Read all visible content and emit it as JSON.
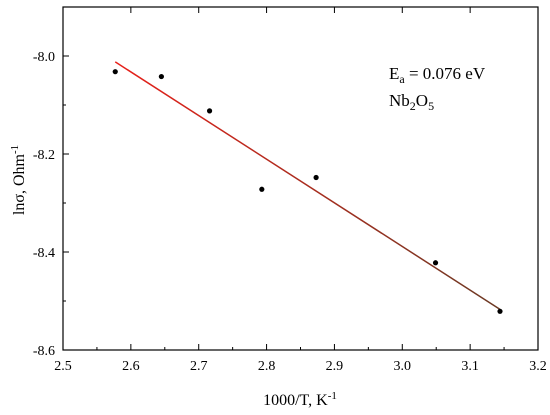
{
  "chart_data": {
    "type": "scatter",
    "title": "",
    "xlabel": "1000/T, K",
    "xlabel_sup": "-1",
    "ylabel": "lnσ, Ohm",
    "ylabel_sup": "-1",
    "xlim": [
      2.5,
      3.2
    ],
    "ylim": [
      -8.6,
      -7.9
    ],
    "x_ticks": [
      "2.5",
      "2.6",
      "2.7",
      "2.8",
      "2.9",
      "3.0",
      "3.1",
      "3.2"
    ],
    "y_ticks": [
      "-8.0",
      "-8.2",
      "-8.4",
      "-8.6"
    ],
    "grid": false,
    "series": [
      {
        "type": "scatter",
        "color": "#000000",
        "points": [
          {
            "x": 2.577,
            "y": -8.032
          },
          {
            "x": 2.645,
            "y": -8.042
          },
          {
            "x": 2.716,
            "y": -8.112
          },
          {
            "x": 2.793,
            "y": -8.272
          },
          {
            "x": 2.873,
            "y": -8.248
          },
          {
            "x": 3.049,
            "y": -8.422
          },
          {
            "x": 3.144,
            "y": -8.521
          }
        ]
      },
      {
        "type": "line",
        "color_start": "#e8201a",
        "color_end": "#6b3a24",
        "points": [
          {
            "x": 2.577,
            "y": -8.012
          },
          {
            "x": 3.144,
            "y": -8.517
          }
        ]
      }
    ],
    "annotations": {
      "ea_main": "E",
      "ea_sub": "a",
      "ea_rest": " = 0.076 eV",
      "formula_nb": "Nb",
      "formula_sub1": "2",
      "formula_o": "O",
      "formula_sub2": "5"
    }
  }
}
